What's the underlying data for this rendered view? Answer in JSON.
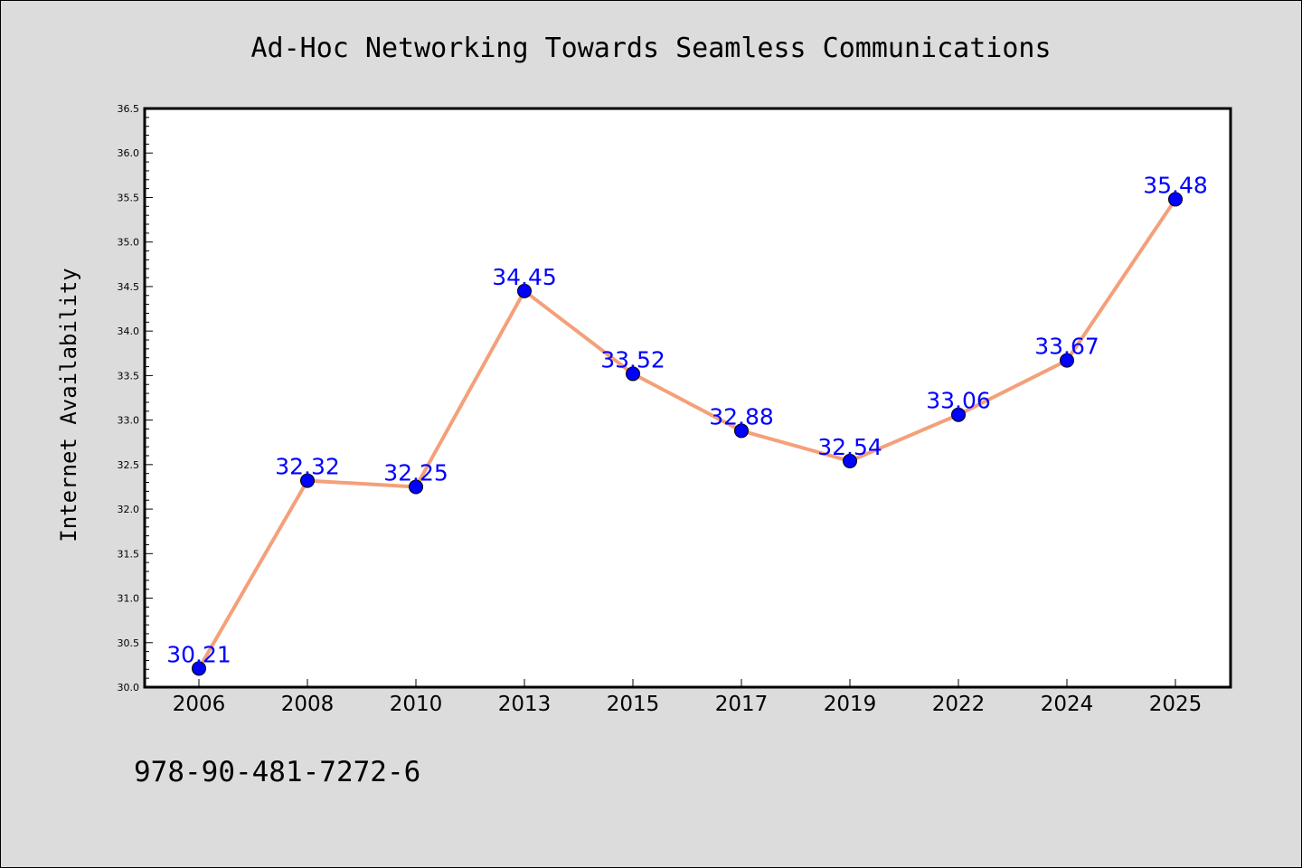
{
  "chart_data": {
    "type": "line",
    "title": "Ad-Hoc Networking Towards Seamless Communications",
    "xlabel": "",
    "ylabel": "Internet Availability",
    "categories": [
      "2006",
      "2008",
      "2010",
      "2013",
      "2015",
      "2017",
      "2019",
      "2022",
      "2024",
      "2025"
    ],
    "values": [
      30.21,
      32.32,
      32.25,
      34.45,
      33.52,
      32.88,
      32.54,
      33.06,
      33.67,
      35.48
    ],
    "data_labels": [
      "30.21",
      "32.32",
      "32.25",
      "34.45",
      "33.52",
      "32.88",
      "32.54",
      "33.06",
      "33.67",
      "35.48"
    ],
    "ylim": [
      30.0,
      36.5
    ],
    "yticks": [
      "30.0",
      "30.5",
      "31.0",
      "31.5",
      "32.0",
      "32.5",
      "33.0",
      "33.5",
      "34.0",
      "34.5",
      "35.0",
      "35.5",
      "36.0",
      "36.5"
    ],
    "grid": false,
    "legend": "none",
    "colors": {
      "line": "#f4a07a",
      "marker": "#0000ff",
      "data_label": "#0000ff",
      "figure_background": "#dcdcdc",
      "plot_background": "#ffffff"
    }
  },
  "footnote": "978-90-481-7272-6"
}
